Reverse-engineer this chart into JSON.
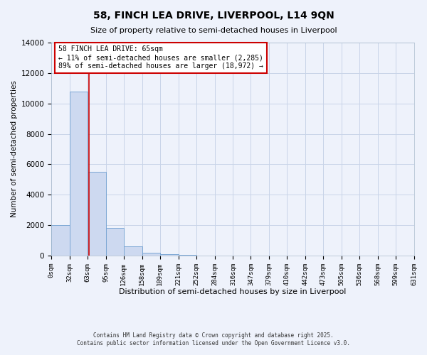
{
  "title": "58, FINCH LEA DRIVE, LIVERPOOL, L14 9QN",
  "subtitle": "Size of property relative to semi-detached houses in Liverpool",
  "bar_heights": [
    2000,
    10800,
    5500,
    1800,
    600,
    200,
    100,
    50,
    0,
    0,
    0,
    0,
    0,
    0,
    0,
    0,
    0,
    0,
    0,
    0
  ],
  "bin_edges": [
    0,
    32,
    63,
    95,
    126,
    158,
    189,
    221,
    252,
    284,
    316,
    347,
    379,
    410,
    442,
    473,
    505,
    536,
    568,
    599,
    631
  ],
  "bar_color": "#cdd9f0",
  "bar_edge_color": "#7ba7d4",
  "property_line_x": 65,
  "property_label": "58 FINCH LEA DRIVE: 65sqm",
  "pct_smaller": 11,
  "pct_larger": 89,
  "count_smaller": 2285,
  "count_larger": 18972,
  "xlabel": "Distribution of semi-detached houses by size in Liverpool",
  "ylabel": "Number of semi-detached properties",
  "ylim": [
    0,
    14000
  ],
  "yticks": [
    0,
    2000,
    4000,
    6000,
    8000,
    10000,
    12000,
    14000
  ],
  "xtick_labels": [
    "0sqm",
    "32sqm",
    "63sqm",
    "95sqm",
    "126sqm",
    "158sqm",
    "189sqm",
    "221sqm",
    "252sqm",
    "284sqm",
    "316sqm",
    "347sqm",
    "379sqm",
    "410sqm",
    "442sqm",
    "473sqm",
    "505sqm",
    "536sqm",
    "568sqm",
    "599sqm",
    "631sqm"
  ],
  "grid_color": "#c8d4e8",
  "background_color": "#eef2fb",
  "footer_line1": "Contains HM Land Registry data © Crown copyright and database right 2025.",
  "footer_line2": "Contains public sector information licensed under the Open Government Licence v3.0.",
  "annotation_box_color": "#ffffff",
  "annotation_box_edge": "#cc0000",
  "vline_color": "#cc0000"
}
